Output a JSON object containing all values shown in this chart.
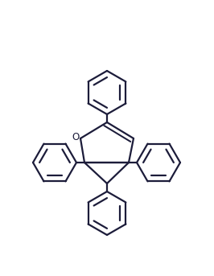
{
  "bg_color": "#ffffff",
  "line_color": "#1c1c3a",
  "line_width": 1.6,
  "fig_width": 2.66,
  "fig_height": 3.43,
  "dpi": 100
}
